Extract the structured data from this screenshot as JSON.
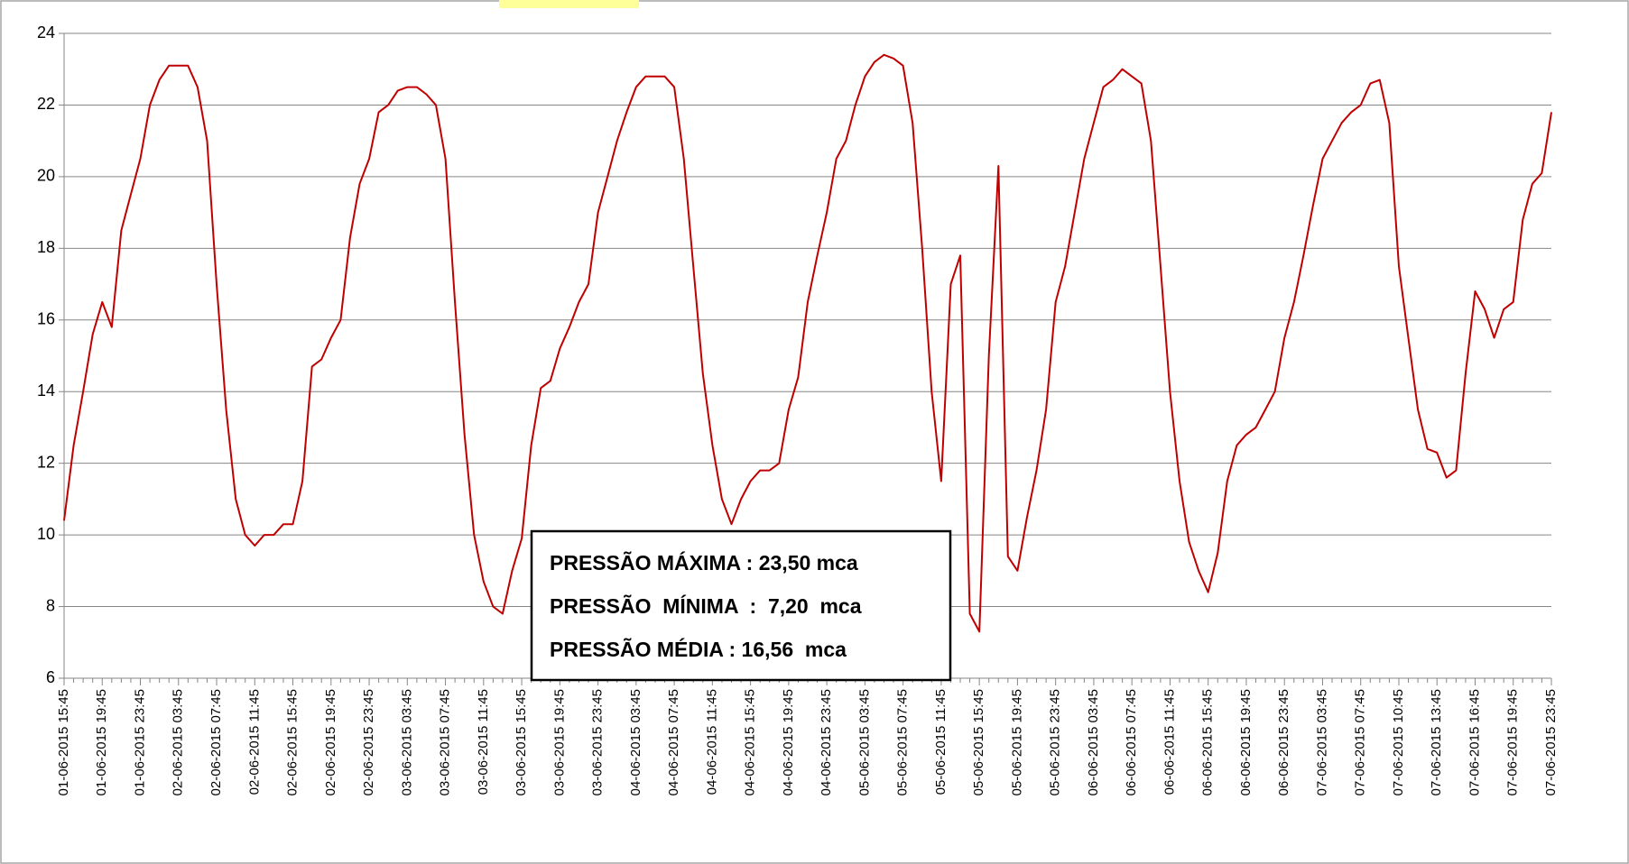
{
  "chart_data": {
    "type": "line",
    "categories": [
      "01-06-2015 15:45",
      null,
      null,
      null,
      "01-06-2015 19:45",
      null,
      null,
      null,
      "01-06-2015 23:45",
      null,
      null,
      null,
      "02-06-2015 03:45",
      null,
      null,
      null,
      "02-06-2015 07:45",
      null,
      null,
      null,
      "02-06-2015 11:45",
      null,
      null,
      null,
      "02-06-2015 15:45",
      null,
      null,
      null,
      "02-06-2015 19:45",
      null,
      null,
      null,
      "02-06-2015 23:45",
      null,
      null,
      null,
      "03-06-2015 03:45",
      null,
      null,
      null,
      "03-06-2015 07:45",
      null,
      null,
      null,
      "03-06-2015 11:45",
      null,
      null,
      null,
      "03-06-2015 15:45",
      null,
      null,
      null,
      "03-06-2015 19:45",
      null,
      null,
      null,
      "03-06-2015 23:45",
      null,
      null,
      null,
      "04-06-2015 03:45",
      null,
      null,
      null,
      "04-06-2015 07:45",
      null,
      null,
      null,
      "04-06-2015 11:45",
      null,
      null,
      null,
      "04-06-2015 15:45",
      null,
      null,
      null,
      "04-06-2015 19:45",
      null,
      null,
      null,
      "04-06-2015 23:45",
      null,
      null,
      null,
      "05-06-2015 03:45",
      null,
      null,
      null,
      "05-06-2015 07:45",
      null,
      null,
      null,
      "05-06-2015 11:45",
      null,
      null,
      null,
      "05-06-2015 15:45",
      null,
      null,
      null,
      "05-06-2015 19:45",
      null,
      null,
      null,
      "05-06-2015 23:45",
      null,
      null,
      null,
      "06-06-2015 03:45",
      null,
      null,
      null,
      "06-06-2015 07:45",
      null,
      null,
      null,
      "06-06-2015 11:45",
      null,
      null,
      null,
      "06-06-2015 15:45",
      null,
      null,
      null,
      "06-06-2015 19:45",
      null,
      null,
      null,
      "06-06-2015 23:45",
      null,
      null,
      null,
      "07-06-2015 03:45",
      null,
      null,
      null,
      "07-06-2015 07:45",
      null,
      null,
      null,
      "07-06-2015 10:45",
      null,
      null,
      null,
      "07-06-2015 13:45",
      null,
      null,
      null,
      "07-06-2015 16:45",
      null,
      null,
      null,
      "07-06-2015 19:45",
      null,
      null,
      null,
      "07-06-2015 23:45"
    ],
    "values": [
      10.4,
      12.5,
      14.0,
      15.6,
      16.5,
      15.8,
      18.5,
      19.5,
      20.5,
      22.0,
      22.7,
      23.1,
      23.1,
      23.1,
      22.5,
      21.0,
      17.0,
      13.5,
      11.0,
      10.0,
      9.7,
      10.0,
      10.0,
      10.3,
      10.3,
      11.5,
      14.7,
      14.9,
      15.5,
      16.0,
      18.3,
      19.8,
      20.5,
      21.8,
      22.0,
      22.4,
      22.5,
      22.5,
      22.3,
      22.0,
      20.5,
      16.5,
      12.8,
      10.0,
      8.7,
      8.0,
      7.8,
      9.0,
      9.9,
      12.5,
      14.1,
      14.3,
      15.2,
      15.8,
      16.5,
      17.0,
      19.0,
      20.0,
      21.0,
      21.8,
      22.5,
      22.8,
      22.8,
      22.8,
      22.5,
      20.5,
      17.5,
      14.5,
      12.5,
      11.0,
      10.3,
      11.0,
      11.5,
      11.8,
      11.8,
      12.0,
      13.5,
      14.4,
      16.5,
      17.8,
      19.0,
      20.5,
      21.0,
      22.0,
      22.8,
      23.2,
      23.4,
      23.3,
      23.1,
      21.5,
      18.0,
      14.0,
      11.5,
      17.0,
      17.8,
      7.8,
      7.3,
      15.0,
      20.3,
      9.4,
      9.0,
      10.5,
      11.8,
      13.5,
      16.5,
      17.5,
      19.0,
      20.5,
      21.5,
      22.5,
      22.7,
      23.0,
      22.8,
      22.6,
      21.0,
      17.5,
      14.0,
      11.5,
      9.8,
      9.0,
      8.4,
      9.5,
      11.5,
      12.5,
      12.8,
      13.0,
      13.5,
      14.0,
      15.5,
      16.5,
      17.8,
      19.2,
      20.5,
      21.0,
      21.5,
      21.8,
      22.0,
      22.6,
      22.7,
      21.5,
      17.5,
      15.5,
      13.5,
      12.4,
      12.3,
      11.6,
      11.8,
      14.5,
      16.8,
      16.3,
      15.5,
      16.3,
      16.5,
      18.8,
      19.8,
      20.1,
      21.8
    ],
    "color": "#c00000",
    "ylim": [
      6,
      24
    ],
    "yticks": [
      6,
      8,
      10,
      12,
      14,
      16,
      18,
      20,
      22,
      24
    ],
    "grid": true,
    "annotations": [
      "PRESSÃO MÁXIMA : 23,50 mca",
      "PRESSÃO  MÍNIMA  :  7,20  mca",
      "PRESSÃO MÉDIA : 16,56  mca"
    ]
  }
}
